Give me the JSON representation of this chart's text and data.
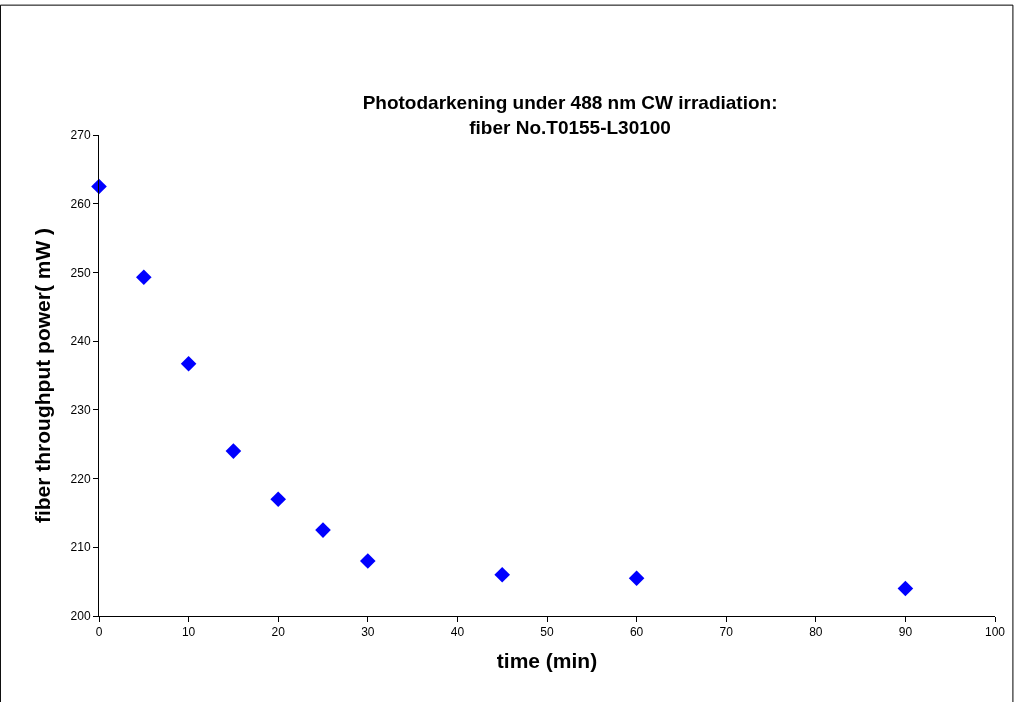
{
  "chart_data": {
    "type": "scatter",
    "title": "Photodarkening under 488 nm CW irradiation:\nfiber No.T0155-L30100",
    "xlabel": "time (min)",
    "ylabel": "fiber throughput power( mW )",
    "x": [
      0,
      5,
      10,
      15,
      20,
      25,
      30,
      45,
      60,
      90
    ],
    "series": [
      {
        "color": "#0000ff",
        "values": [
          262.5,
          249.3,
          236.7,
          224,
          217,
          212.5,
          208,
          206,
          205.5,
          204
        ]
      }
    ],
    "xlim": [
      0,
      100
    ],
    "xticks": [
      0,
      10,
      20,
      30,
      40,
      50,
      60,
      70,
      80,
      90,
      100
    ],
    "ylim": [
      200,
      270
    ],
    "yticks": [
      200,
      210,
      220,
      230,
      240,
      250,
      260,
      270
    ],
    "grid": false,
    "marker": "diamond"
  }
}
